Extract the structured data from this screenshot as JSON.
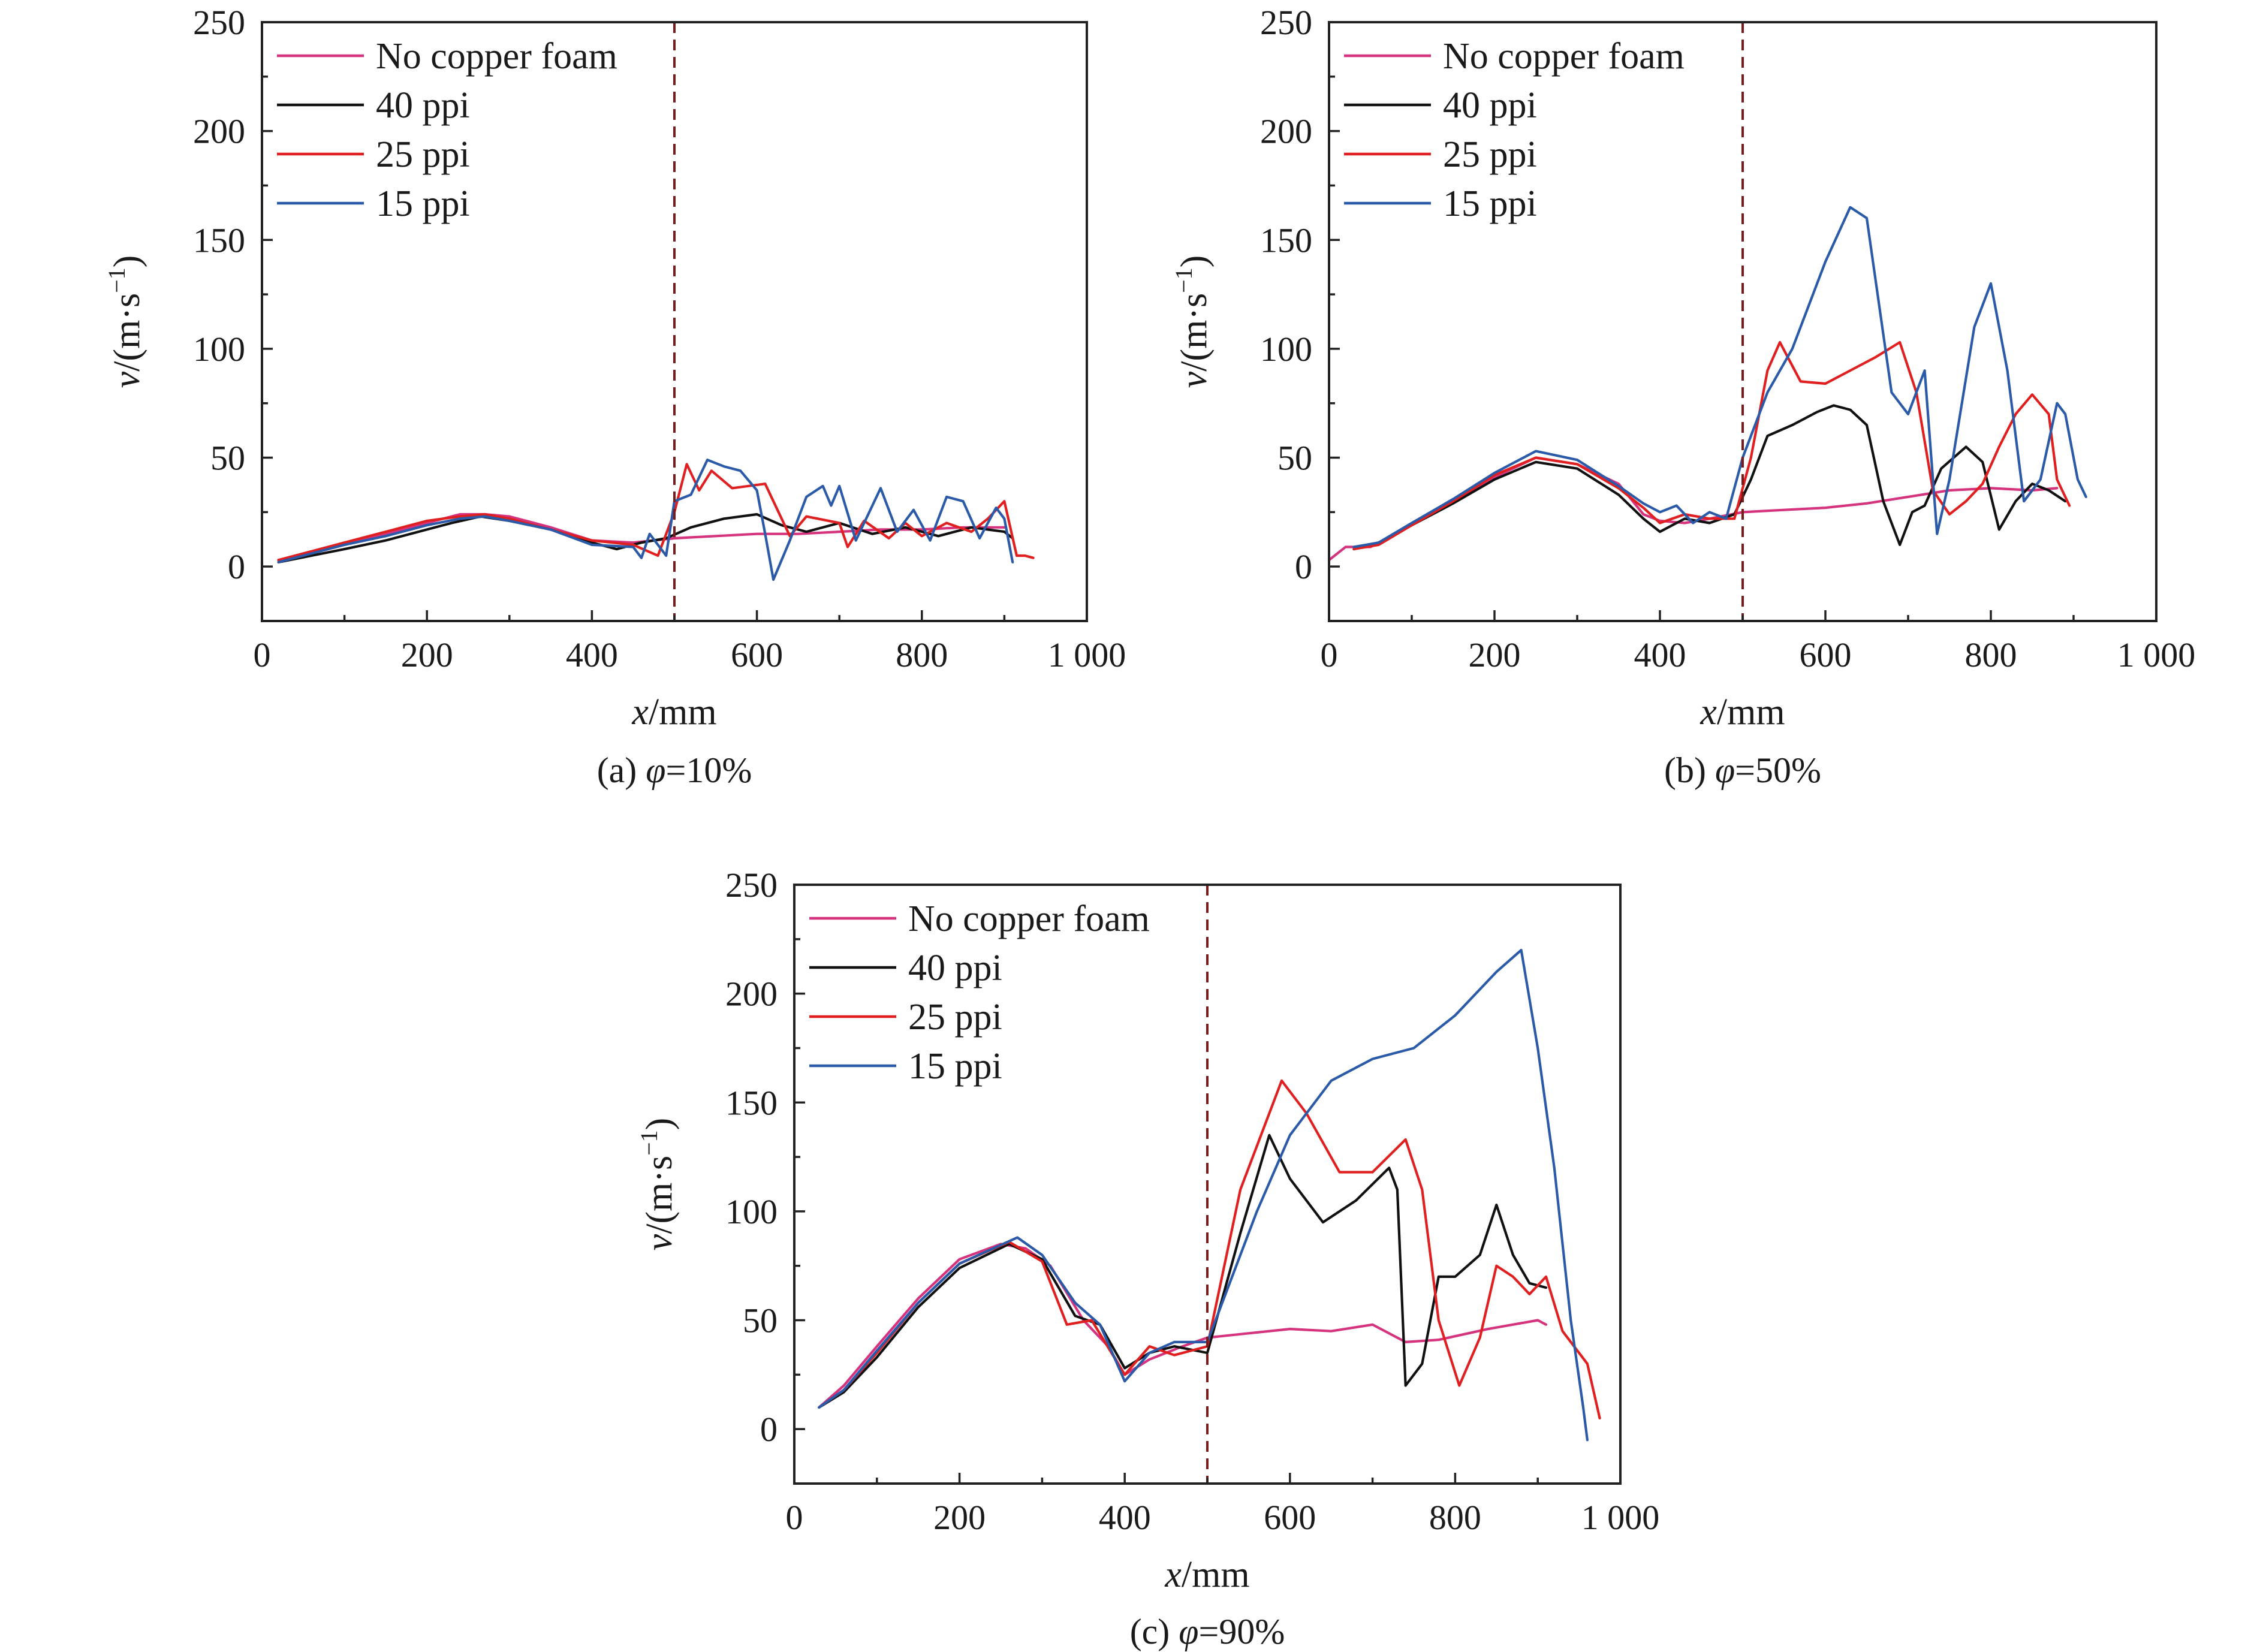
{
  "figure": {
    "panels": [
      {
        "id": "a",
        "caption_prefix": "(a) ",
        "caption_symbol": "φ",
        "caption_value": "=10%"
      },
      {
        "id": "b",
        "caption_prefix": "(b) ",
        "caption_symbol": "φ",
        "caption_value": "=50%"
      },
      {
        "id": "c",
        "caption_prefix": "(c) ",
        "caption_symbol": "φ",
        "caption_value": "=90%"
      }
    ]
  },
  "chart_data": [
    {
      "type": "line",
      "panel": "a",
      "xlabel_italic": "x",
      "xlabel_rest": "/mm",
      "ylabel_italic": "v",
      "ylabel_rest": "/(m·s",
      "ylabel_sup": "−1",
      "ylabel_close": ")",
      "xlim": [
        0,
        1000
      ],
      "ylim": [
        -25,
        250
      ],
      "xticks": [
        0,
        200,
        400,
        600,
        800,
        1000
      ],
      "xtick_labels": [
        "0",
        "200",
        "400",
        "600",
        "800",
        "1 000"
      ],
      "yticks": [
        0,
        50,
        100,
        150,
        200,
        250
      ],
      "ytick_labels": [
        "0",
        "50",
        "100",
        "150",
        "200",
        "250"
      ],
      "vertical_marker_x": 500,
      "legend_position": "top-left",
      "series": [
        {
          "name": "No copper foam",
          "color": "#d6337e",
          "x": [
            20,
            60,
            100,
            150,
            200,
            240,
            270,
            300,
            350,
            400,
            450,
            500,
            550,
            600,
            650,
            700,
            750,
            800,
            850,
            900
          ],
          "y": [
            3,
            6,
            10,
            15,
            20,
            24,
            24,
            23,
            18,
            12,
            11,
            13,
            14,
            15,
            15,
            16,
            17,
            17,
            18,
            18
          ]
        },
        {
          "name": "40 ppi",
          "color": "#111111",
          "x": [
            20,
            60,
            100,
            150,
            200,
            230,
            265,
            300,
            350,
            400,
            430,
            460,
            490,
            520,
            560,
            600,
            630,
            660,
            700,
            740,
            780,
            820,
            860,
            900,
            910
          ],
          "y": [
            2,
            5,
            8,
            12,
            17,
            20,
            23,
            21,
            17,
            11,
            8,
            11,
            13,
            18,
            22,
            24,
            19,
            16,
            20,
            15,
            18,
            14,
            18,
            16,
            13
          ]
        },
        {
          "name": "25 ppi",
          "color": "#e02020",
          "x": [
            20,
            60,
            100,
            150,
            200,
            240,
            270,
            300,
            350,
            400,
            450,
            480,
            500,
            515,
            530,
            545,
            570,
            610,
            620,
            640,
            660,
            700,
            710,
            730,
            760,
            780,
            800,
            830,
            860,
            880,
            900,
            915,
            925,
            935
          ],
          "y": [
            3,
            7,
            11,
            16,
            21,
            23,
            24,
            22,
            17,
            12,
            10,
            5,
            25,
            47,
            35,
            44,
            36,
            38,
            30,
            14,
            23,
            20,
            9,
            21,
            13,
            20,
            14,
            20,
            16,
            22,
            30,
            5,
            5,
            4
          ]
        },
        {
          "name": "15 ppi",
          "color": "#2a5aa8",
          "x": [
            20,
            60,
            100,
            150,
            200,
            240,
            270,
            300,
            350,
            400,
            450,
            460,
            470,
            490,
            500,
            520,
            540,
            560,
            580,
            600,
            610,
            620,
            640,
            660,
            680,
            690,
            700,
            720,
            750,
            770,
            790,
            810,
            830,
            850,
            870,
            890,
            900,
            910
          ],
          "y": [
            2,
            6,
            10,
            14,
            19,
            22,
            23,
            21,
            17,
            10,
            9,
            4,
            15,
            5,
            30,
            33,
            49,
            46,
            44,
            35,
            15,
            -6,
            12,
            32,
            37,
            28,
            37,
            12,
            36,
            16,
            26,
            12,
            32,
            30,
            13,
            27,
            22,
            2
          ]
        }
      ]
    },
    {
      "type": "line",
      "panel": "b",
      "xlabel_italic": "x",
      "xlabel_rest": "/mm",
      "ylabel_italic": "v",
      "ylabel_rest": "/(m·s",
      "ylabel_sup": "−1",
      "ylabel_close": ")",
      "xlim": [
        0,
        1000
      ],
      "ylim": [
        -25,
        250
      ],
      "xticks": [
        0,
        200,
        400,
        600,
        800,
        1000
      ],
      "xtick_labels": [
        "0",
        "200",
        "400",
        "600",
        "800",
        "1 000"
      ],
      "yticks": [
        0,
        50,
        100,
        150,
        200,
        250
      ],
      "ytick_labels": [
        "0",
        "50",
        "100",
        "150",
        "200",
        "250"
      ],
      "vertical_marker_x": 500,
      "legend_position": "top-left",
      "series": [
        {
          "name": "No copper foam",
          "color": "#d6337e",
          "x": [
            0,
            20,
            50,
            100,
            150,
            200,
            250,
            300,
            350,
            380,
            400,
            430,
            460,
            500,
            550,
            600,
            650,
            700,
            750,
            800,
            850,
            880
          ],
          "y": [
            3,
            9,
            9,
            19,
            30,
            41,
            50,
            47,
            38,
            24,
            21,
            20,
            22,
            25,
            26,
            27,
            29,
            32,
            35,
            36,
            35,
            36
          ]
        },
        {
          "name": "40 ppi",
          "color": "#111111",
          "x": [
            30,
            60,
            100,
            150,
            200,
            250,
            300,
            350,
            380,
            400,
            430,
            460,
            490,
            510,
            530,
            560,
            590,
            610,
            630,
            650,
            670,
            690,
            705,
            720,
            740,
            770,
            790,
            810,
            830,
            850,
            870,
            890
          ],
          "y": [
            8,
            11,
            19,
            29,
            40,
            48,
            45,
            33,
            22,
            16,
            22,
            20,
            24,
            40,
            60,
            65,
            71,
            74,
            72,
            65,
            30,
            10,
            25,
            28,
            45,
            55,
            48,
            17,
            30,
            38,
            35,
            30
          ]
        },
        {
          "name": "25 ppi",
          "color": "#e02020",
          "x": [
            30,
            60,
            100,
            150,
            200,
            250,
            300,
            350,
            380,
            400,
            430,
            460,
            490,
            510,
            530,
            545,
            570,
            600,
            630,
            660,
            690,
            710,
            730,
            750,
            770,
            790,
            810,
            830,
            850,
            870,
            880,
            895
          ],
          "y": [
            8,
            10,
            19,
            30,
            42,
            50,
            47,
            36,
            27,
            20,
            24,
            22,
            22,
            50,
            90,
            103,
            85,
            84,
            90,
            96,
            103,
            80,
            35,
            24,
            30,
            38,
            55,
            70,
            79,
            70,
            40,
            28
          ]
        },
        {
          "name": "15 ppi",
          "color": "#2a5aa8",
          "x": [
            30,
            60,
            100,
            150,
            200,
            250,
            300,
            350,
            380,
            400,
            420,
            440,
            460,
            480,
            500,
            530,
            560,
            600,
            630,
            650,
            680,
            700,
            720,
            735,
            750,
            780,
            800,
            820,
            840,
            860,
            880,
            890,
            905,
            915
          ],
          "y": [
            9,
            11,
            20,
            31,
            43,
            53,
            49,
            37,
            29,
            25,
            28,
            20,
            25,
            22,
            50,
            80,
            100,
            140,
            165,
            160,
            80,
            70,
            90,
            15,
            40,
            110,
            130,
            90,
            30,
            40,
            75,
            70,
            40,
            32
          ]
        }
      ]
    },
    {
      "type": "line",
      "panel": "c",
      "xlabel_italic": "x",
      "xlabel_rest": "/mm",
      "ylabel_italic": "v",
      "ylabel_rest": "/(m·s",
      "ylabel_sup": "−1",
      "ylabel_close": ")",
      "xlim": [
        0,
        1000
      ],
      "ylim": [
        -25,
        250
      ],
      "xticks": [
        0,
        200,
        400,
        600,
        800,
        1000
      ],
      "xtick_labels": [
        "0",
        "200",
        "400",
        "600",
        "800",
        "1 000"
      ],
      "yticks": [
        0,
        50,
        100,
        150,
        200,
        250
      ],
      "ytick_labels": [
        "0",
        "50",
        "100",
        "150",
        "200",
        "250"
      ],
      "vertical_marker_x": 500,
      "legend_position": "top-left",
      "series": [
        {
          "name": "No copper foam",
          "color": "#d6337e",
          "x": [
            30,
            60,
            100,
            150,
            200,
            250,
            280,
            310,
            350,
            380,
            400,
            430,
            470,
            500,
            550,
            600,
            650,
            700,
            740,
            780,
            840,
            900,
            910
          ],
          "y": [
            10,
            20,
            38,
            60,
            78,
            85,
            83,
            75,
            50,
            38,
            25,
            32,
            38,
            42,
            44,
            46,
            45,
            48,
            40,
            41,
            46,
            50,
            48
          ]
        },
        {
          "name": "40 ppi",
          "color": "#111111",
          "x": [
            30,
            60,
            100,
            150,
            200,
            260,
            300,
            340,
            370,
            400,
            430,
            460,
            500,
            540,
            575,
            600,
            640,
            680,
            720,
            730,
            740,
            760,
            780,
            800,
            830,
            850,
            870,
            890,
            910
          ],
          "y": [
            10,
            17,
            33,
            56,
            74,
            85,
            78,
            52,
            48,
            28,
            35,
            38,
            35,
            90,
            135,
            115,
            95,
            105,
            120,
            110,
            20,
            30,
            70,
            70,
            80,
            103,
            80,
            67,
            65
          ]
        },
        {
          "name": "25 ppi",
          "color": "#e02020",
          "x": [
            30,
            60,
            100,
            150,
            200,
            260,
            300,
            330,
            360,
            400,
            430,
            460,
            500,
            540,
            590,
            620,
            660,
            700,
            740,
            760,
            780,
            805,
            830,
            850,
            870,
            890,
            910,
            930,
            960,
            975
          ],
          "y": [
            10,
            18,
            35,
            58,
            76,
            86,
            77,
            48,
            50,
            25,
            38,
            34,
            38,
            110,
            160,
            145,
            118,
            118,
            133,
            110,
            50,
            20,
            42,
            75,
            70,
            62,
            70,
            45,
            30,
            5
          ]
        },
        {
          "name": "15 ppi",
          "color": "#2a5aa8",
          "x": [
            30,
            60,
            100,
            150,
            200,
            270,
            300,
            340,
            370,
            400,
            430,
            460,
            500,
            560,
            600,
            650,
            700,
            750,
            800,
            850,
            880,
            900,
            920,
            940,
            955,
            960
          ],
          "y": [
            10,
            18,
            36,
            58,
            76,
            88,
            80,
            58,
            48,
            22,
            35,
            40,
            40,
            100,
            135,
            160,
            170,
            175,
            190,
            210,
            220,
            175,
            120,
            50,
            10,
            -5
          ]
        }
      ]
    }
  ]
}
